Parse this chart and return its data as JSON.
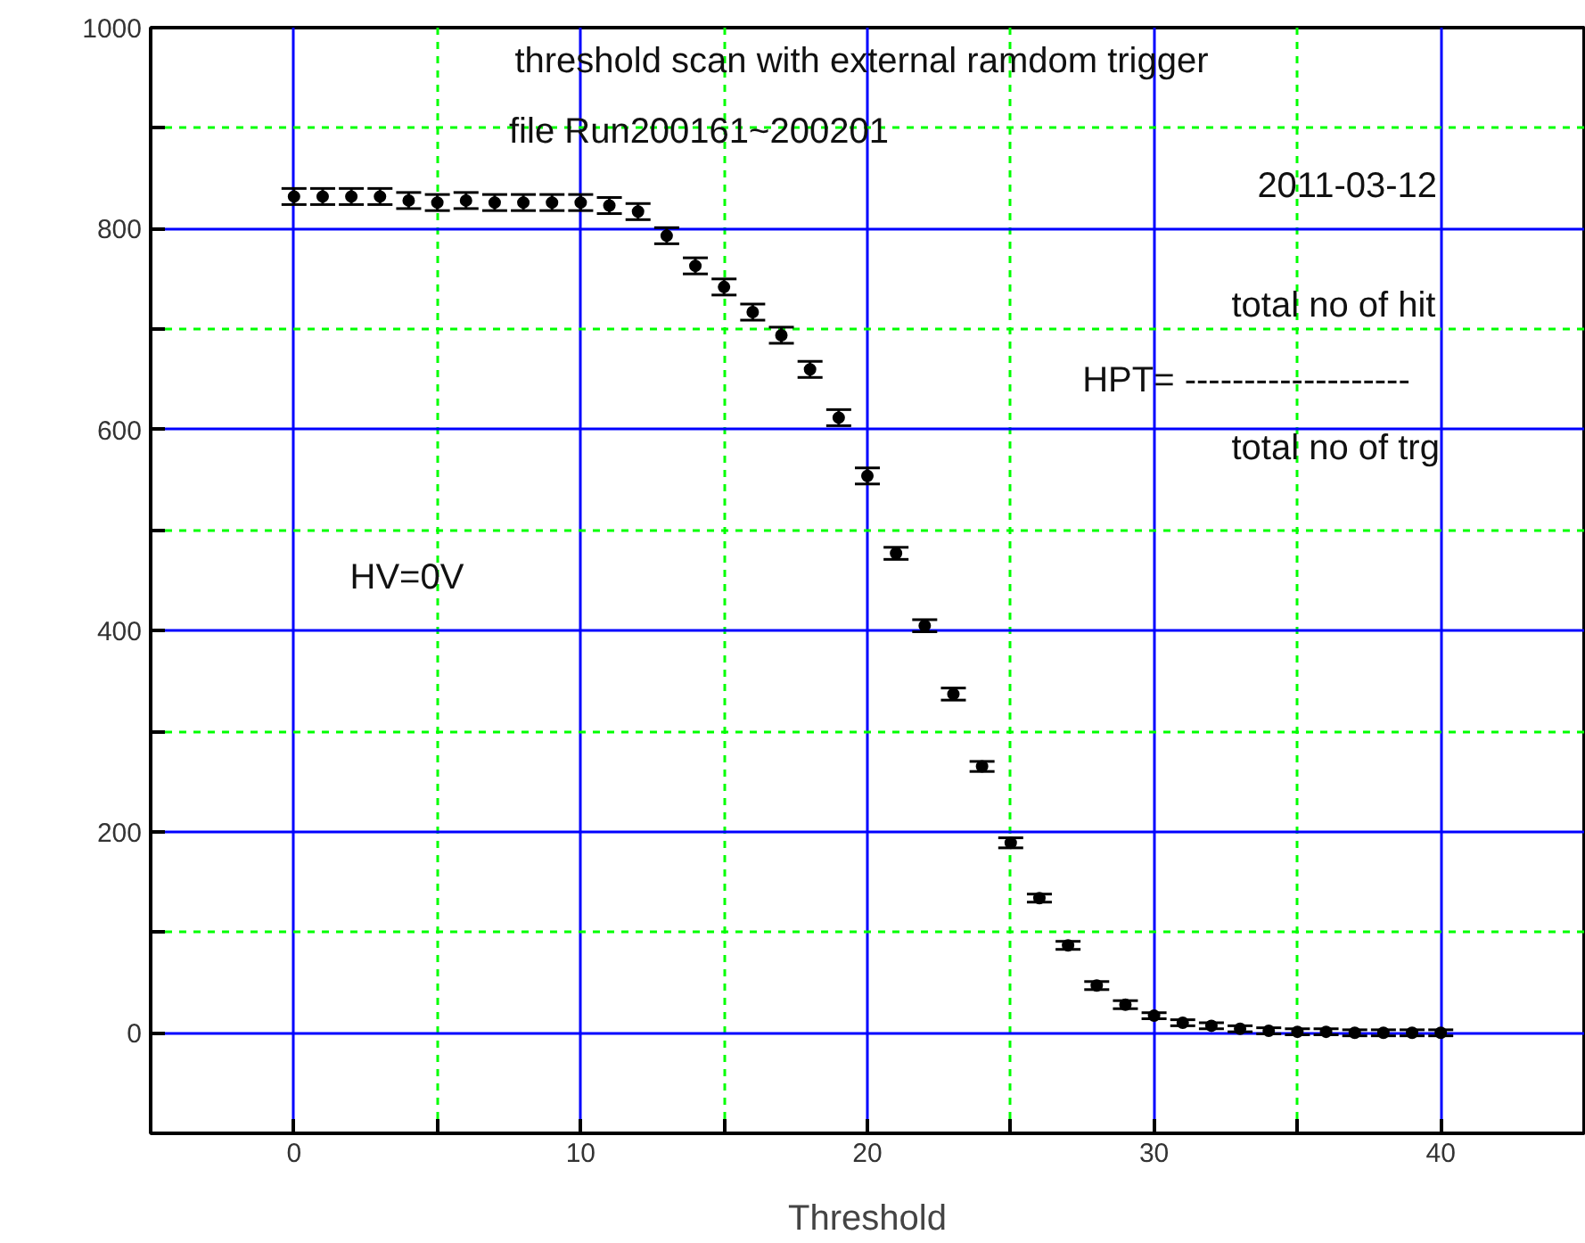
{
  "chart_data": {
    "type": "scatter",
    "xlabel": "Threshold",
    "x": [
      0,
      1,
      2,
      3,
      4,
      5,
      6,
      7,
      8,
      9,
      10,
      11,
      12,
      13,
      14,
      15,
      16,
      17,
      18,
      19,
      20,
      21,
      22,
      23,
      24,
      25,
      26,
      27,
      28,
      29,
      30,
      31,
      32,
      33,
      34,
      35,
      36,
      37,
      38,
      39,
      40
    ],
    "series": [
      {
        "color": "#000000",
        "values": [
          832,
          832,
          832,
          832,
          828,
          826,
          828,
          826,
          826,
          826,
          826,
          823,
          817,
          793,
          763,
          742,
          717,
          694,
          660,
          612,
          554,
          477,
          405,
          337,
          265,
          189,
          134,
          87,
          47,
          28,
          17,
          10,
          7,
          4,
          2,
          1,
          1,
          0,
          0,
          0,
          0
        ],
        "errors": [
          8,
          8,
          8,
          8,
          8,
          8,
          8,
          8,
          8,
          8,
          8,
          8,
          8,
          8,
          8,
          8,
          8,
          8,
          8,
          8,
          8,
          6,
          6,
          6,
          5,
          5,
          4,
          4,
          4,
          4,
          3,
          3,
          3,
          3,
          3,
          3,
          3,
          3,
          3,
          3,
          3
        ]
      }
    ],
    "marker": "circle",
    "xlim": [
      -5,
      45
    ],
    "xticks": [
      0,
      {
        "value": 5,
        "label": null
      },
      10,
      {
        "value": 15,
        "label": null
      },
      20,
      {
        "value": 25,
        "label": null
      },
      30,
      {
        "value": 35,
        "label": null
      },
      40
    ],
    "ylim": [
      -100,
      1000
    ],
    "yticks": [
      {
        "value": -100,
        "label": null
      },
      0,
      {
        "value": 100,
        "label": null
      },
      200,
      {
        "value": 300,
        "label": null
      },
      400,
      {
        "value": 500,
        "label": null
      },
      600,
      {
        "value": 700,
        "label": null
      },
      800,
      {
        "value": 900,
        "label": null
      },
      1000
    ],
    "grid": true,
    "annotations": [
      "threshold scan with external ramdom trigger",
      "file Run200161~200201",
      "2011-03-12",
      "total no of hit",
      "HPT= -------------------",
      "total no of trg",
      "HV=0V"
    ]
  }
}
